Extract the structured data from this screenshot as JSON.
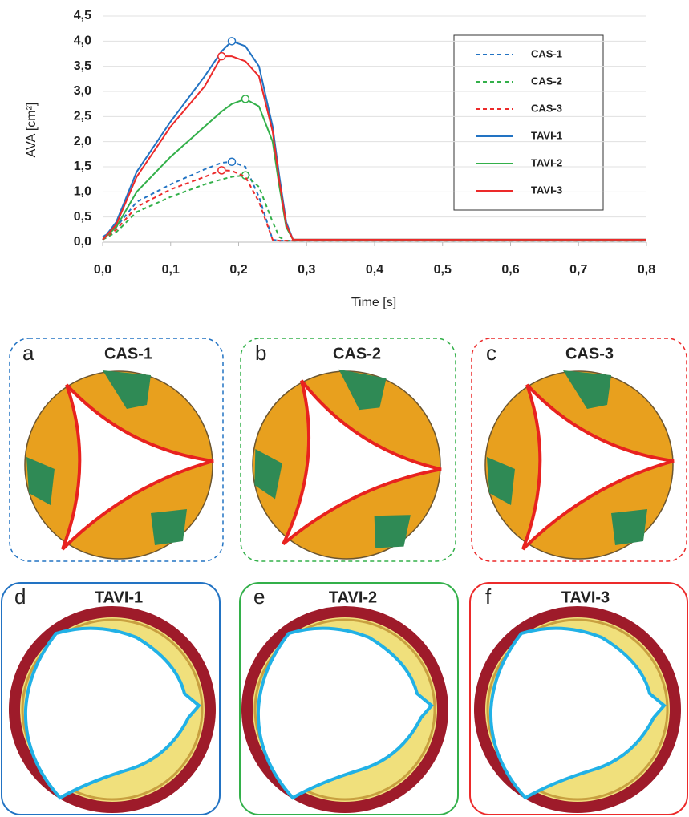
{
  "chart_data": {
    "type": "line",
    "x_label": "Time [s]",
    "y_label": "AVA [cm²]",
    "x": [
      0,
      0.02,
      0.05,
      0.1,
      0.15,
      0.175,
      0.19,
      0.21,
      0.23,
      0.25,
      0.26,
      0.27,
      0.28,
      0.3,
      0.5,
      0.8
    ],
    "series": [
      {
        "name": "CAS-1",
        "color": "#2273c3",
        "linestyle": "dashed",
        "values": [
          0.1,
          0.3,
          0.8,
          1.15,
          1.45,
          1.58,
          1.6,
          1.5,
          0.9,
          0.05,
          0.03,
          0.03,
          0.03,
          0.03,
          0.03,
          0.03
        ]
      },
      {
        "name": "CAS-2",
        "color": "#33b04a",
        "linestyle": "dashed",
        "values": [
          0.05,
          0.2,
          0.6,
          0.9,
          1.15,
          1.25,
          1.3,
          1.33,
          1.1,
          0.4,
          0.1,
          0.03,
          0.03,
          0.03,
          0.03,
          0.03
        ]
      },
      {
        "name": "CAS-3",
        "color": "#ec2a2a",
        "linestyle": "dashed",
        "values": [
          0.05,
          0.25,
          0.7,
          1.05,
          1.3,
          1.43,
          1.42,
          1.3,
          0.8,
          0.05,
          0.03,
          0.03,
          0.03,
          0.03,
          0.03,
          0.03
        ]
      },
      {
        "name": "TAVI-1",
        "color": "#2273c3",
        "linestyle": "solid",
        "values": [
          0.05,
          0.4,
          1.4,
          2.4,
          3.3,
          3.8,
          4.0,
          3.9,
          3.5,
          2.3,
          1.3,
          0.4,
          0.05,
          0.05,
          0.05,
          0.05
        ]
      },
      {
        "name": "TAVI-2",
        "color": "#33b04a",
        "linestyle": "solid",
        "values": [
          0.05,
          0.3,
          1.0,
          1.7,
          2.3,
          2.6,
          2.75,
          2.85,
          2.7,
          2.0,
          1.1,
          0.3,
          0.05,
          0.05,
          0.05,
          0.05
        ]
      },
      {
        "name": "TAVI-3",
        "color": "#ec2a2a",
        "linestyle": "solid",
        "values": [
          0.05,
          0.35,
          1.3,
          2.3,
          3.1,
          3.7,
          3.7,
          3.6,
          3.3,
          2.2,
          1.2,
          0.35,
          0.05,
          0.05,
          0.05,
          0.05
        ]
      }
    ],
    "xlim": [
      0,
      0.8
    ],
    "xticks": [
      {
        "value": 0,
        "label": "0,0"
      },
      {
        "value": 0.1,
        "label": "0,1"
      },
      {
        "value": 0.2,
        "label": "0,2"
      },
      {
        "value": 0.3,
        "label": "0,3"
      },
      {
        "value": 0.4,
        "label": "0,4"
      },
      {
        "value": 0.5,
        "label": "0,5"
      },
      {
        "value": 0.6,
        "label": "0,6"
      },
      {
        "value": 0.7,
        "label": "0,7"
      },
      {
        "value": 0.8,
        "label": "0,8"
      }
    ],
    "ylim": [
      0,
      4.5
    ],
    "yticks": [
      {
        "value": 0,
        "label": "0,0"
      },
      {
        "value": 0.5,
        "label": "0,5"
      },
      {
        "value": 1,
        "label": "1,0"
      },
      {
        "value": 1.5,
        "label": "1,5"
      },
      {
        "value": 2,
        "label": "2,0"
      },
      {
        "value": 2.5,
        "label": "2,5"
      },
      {
        "value": 3,
        "label": "3,0"
      },
      {
        "value": 3.5,
        "label": "3,5"
      },
      {
        "value": 4,
        "label": "4,0"
      },
      {
        "value": 4.5,
        "label": "4,5"
      }
    ],
    "grid": true,
    "legend": "upper right"
  },
  "panels": [
    {
      "letter": "a",
      "title": "CAS-1"
    },
    {
      "letter": "b",
      "title": "CAS-2"
    },
    {
      "letter": "c",
      "title": "CAS-3"
    },
    {
      "letter": "d",
      "title": "TAVI-1"
    },
    {
      "letter": "e",
      "title": "TAVI-2"
    },
    {
      "letter": "f",
      "title": "TAVI-3"
    }
  ]
}
